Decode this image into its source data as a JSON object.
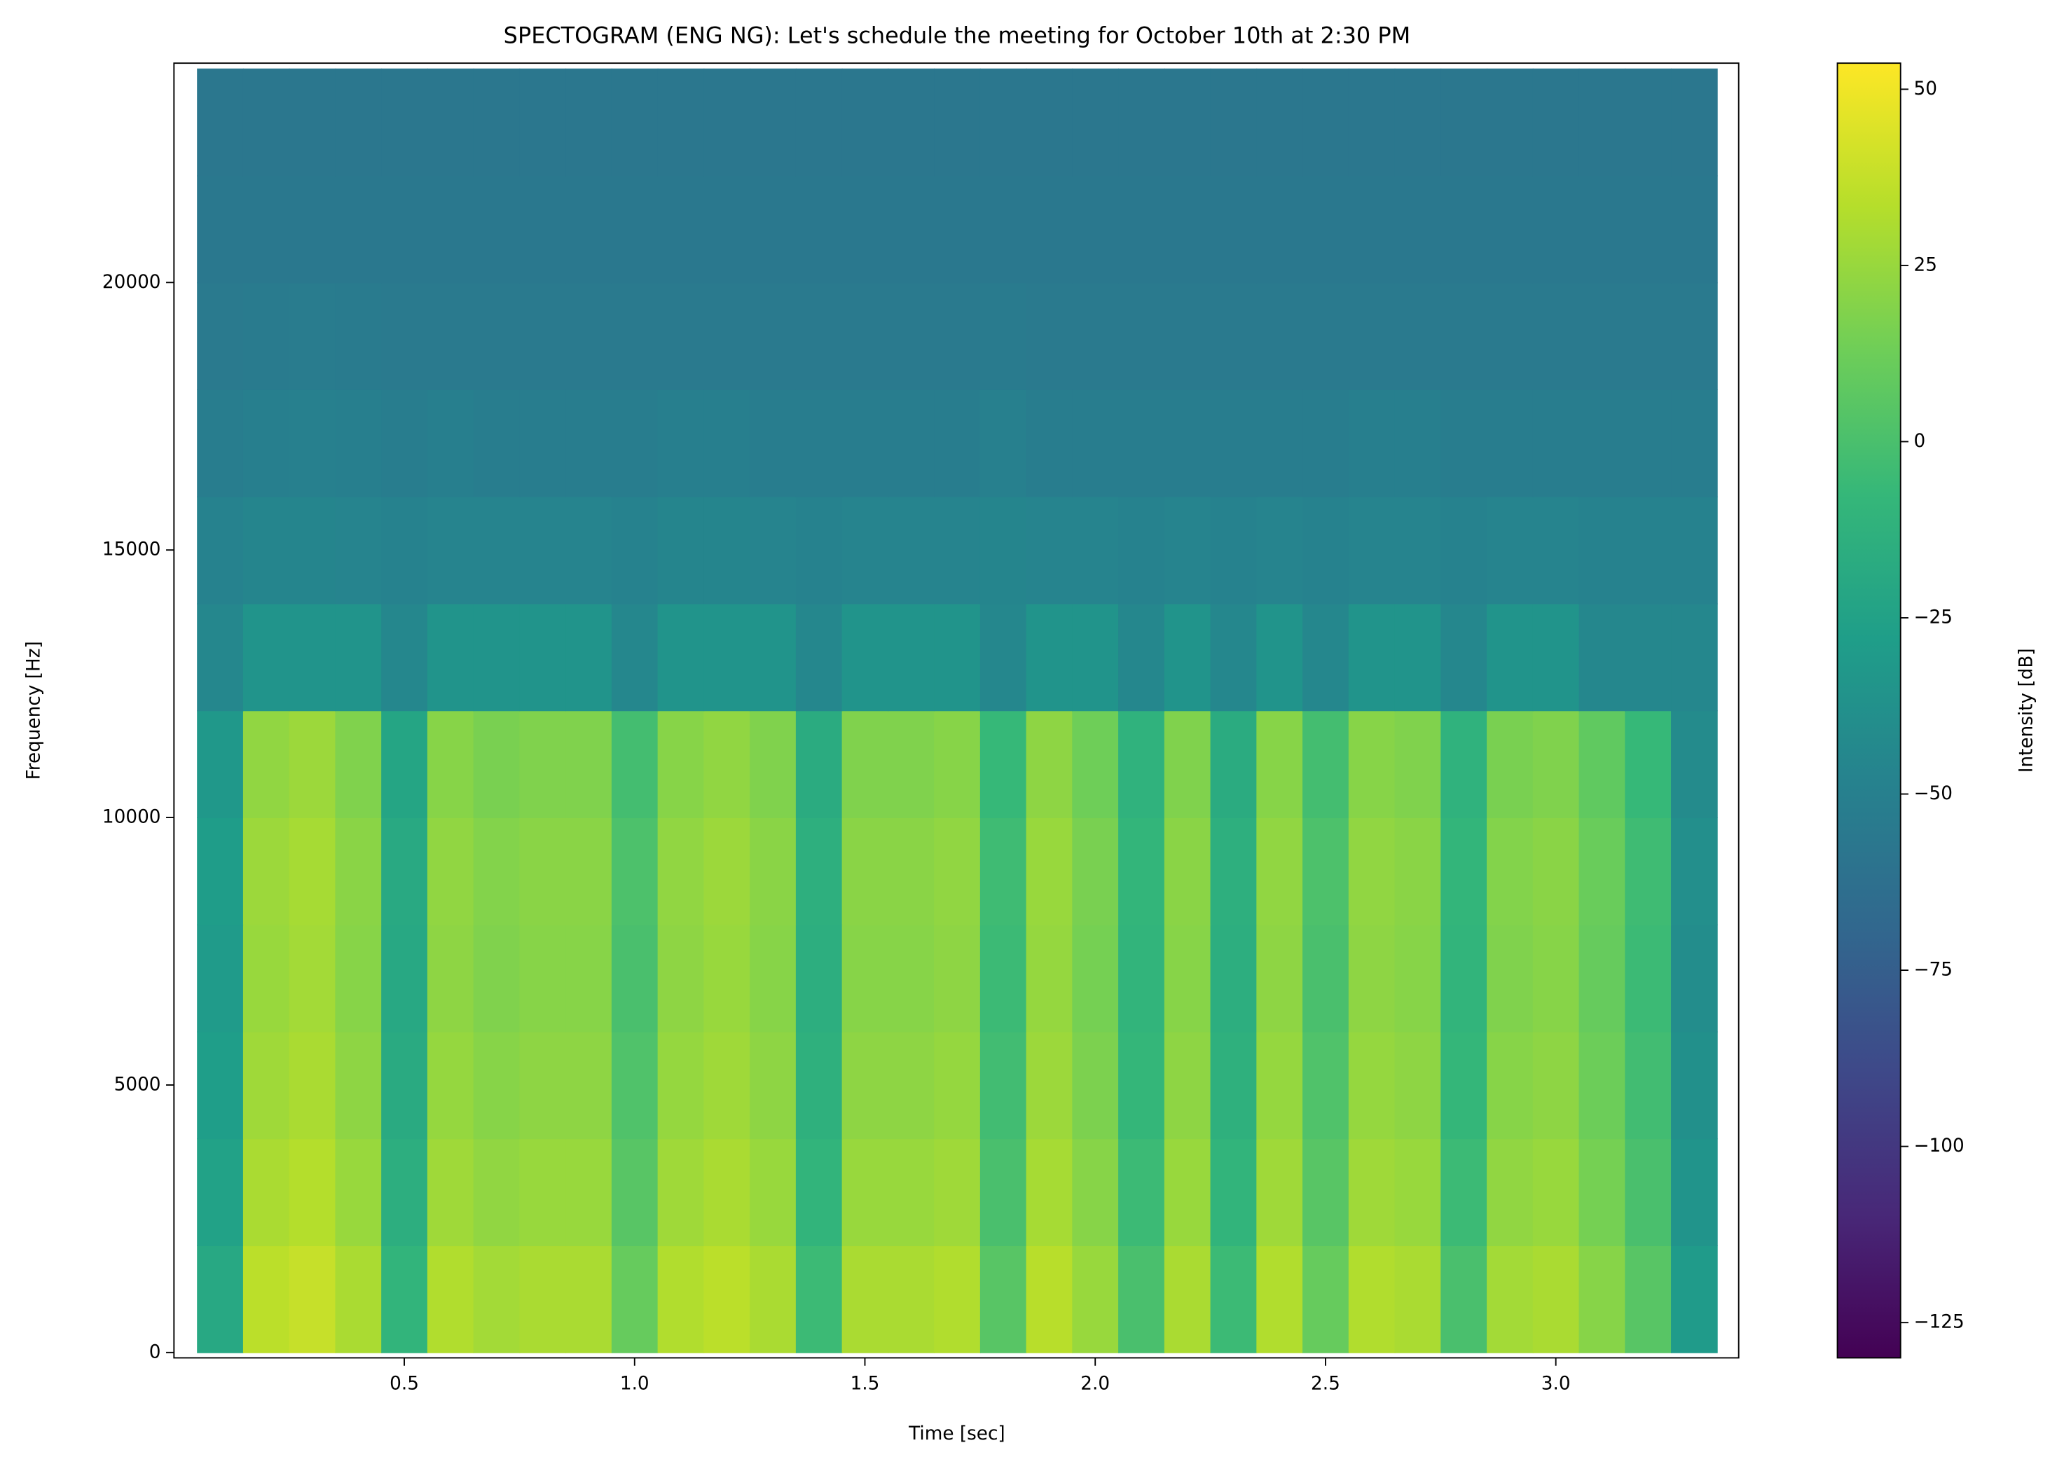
{
  "chart_data": {
    "type": "heatmap",
    "title": "SPECTOGRAM (ENG NG): Let's schedule the meeting for October 10th at 2:30 PM",
    "x_label": "Time [sec]",
    "y_label": "Frequency [Hz]",
    "colorbar_label": "Intensity [dB]",
    "colormap": "viridis",
    "x": [
      0.1,
      0.2,
      0.3,
      0.4,
      0.5,
      0.6,
      0.7,
      0.8,
      0.9,
      1.0,
      1.1,
      1.2,
      1.3,
      1.4,
      1.5,
      1.6,
      1.7,
      1.8,
      1.9,
      2.0,
      2.1,
      2.2,
      2.3,
      2.4,
      2.5,
      2.6,
      2.7,
      2.8,
      2.9,
      3.0,
      3.1,
      3.2,
      3.3
    ],
    "y": [
      1000,
      3000,
      5000,
      7000,
      9000,
      11000,
      13000,
      15000,
      17000,
      19000,
      21000,
      23000
    ],
    "values": [
      [
        -20,
        35,
        38,
        30,
        -10,
        32,
        28,
        30,
        30,
        10,
        32,
        35,
        30,
        -5,
        30,
        30,
        32,
        5,
        34,
        25,
        0,
        30,
        -5,
        32,
        10,
        32,
        30,
        0,
        28,
        30,
        20,
        5,
        -30
      ],
      [
        -25,
        30,
        33,
        25,
        -15,
        27,
        23,
        25,
        25,
        5,
        27,
        30,
        25,
        -10,
        25,
        25,
        27,
        0,
        29,
        20,
        -5,
        25,
        -10,
        27,
        5,
        27,
        25,
        -5,
        23,
        25,
        15,
        0,
        -35
      ],
      [
        -28,
        27,
        30,
        22,
        -18,
        24,
        20,
        22,
        22,
        2,
        24,
        27,
        22,
        -13,
        22,
        22,
        24,
        -3,
        26,
        17,
        -8,
        22,
        -13,
        24,
        2,
        24,
        22,
        -8,
        20,
        22,
        12,
        -3,
        -38
      ],
      [
        -30,
        25,
        28,
        20,
        -20,
        22,
        18,
        20,
        20,
        0,
        22,
        25,
        20,
        -15,
        20,
        20,
        22,
        -5,
        24,
        15,
        -10,
        20,
        -15,
        22,
        0,
        22,
        20,
        -10,
        18,
        20,
        10,
        -5,
        -40
      ],
      [
        -29,
        26,
        29,
        21,
        -19,
        23,
        19,
        21,
        21,
        1,
        23,
        26,
        21,
        -14,
        21,
        21,
        23,
        -4,
        25,
        16,
        -9,
        21,
        -14,
        23,
        1,
        23,
        21,
        -9,
        19,
        21,
        11,
        -4,
        -39
      ],
      [
        -32,
        23,
        26,
        18,
        -22,
        20,
        16,
        18,
        18,
        -2,
        20,
        23,
        18,
        -17,
        18,
        18,
        20,
        -7,
        22,
        13,
        -12,
        18,
        -17,
        20,
        -2,
        20,
        18,
        -12,
        16,
        18,
        8,
        -7,
        -42
      ],
      [
        -45,
        -35,
        -35,
        -35,
        -45,
        -35,
        -35,
        -35,
        -35,
        -45,
        -35,
        -35,
        -35,
        -45,
        -35,
        -35,
        -35,
        -45,
        -35,
        -35,
        -45,
        -35,
        -45,
        -35,
        -45,
        -35,
        -35,
        -45,
        -35,
        -35,
        -45,
        -45,
        -45
      ],
      [
        -48,
        -46,
        -46,
        -47,
        -48,
        -47,
        -47,
        -47,
        -47,
        -48,
        -46,
        -46,
        -47,
        -48,
        -47,
        -47,
        -47,
        -46,
        -47,
        -47,
        -48,
        -47,
        -48,
        -47,
        -48,
        -47,
        -47,
        -48,
        -47,
        -47,
        -48,
        -48,
        -48
      ],
      [
        -52,
        -51,
        -50,
        -51,
        -52,
        -51,
        -52,
        -52,
        -52,
        -52,
        -51,
        -51,
        -52,
        -52,
        -52,
        -52,
        -52,
        -50,
        -52,
        -52,
        -52,
        -52,
        -52,
        -52,
        -52,
        -51,
        -51,
        -52,
        -52,
        -52,
        -52,
        -52,
        -52
      ],
      [
        -55,
        -54,
        -53,
        -54,
        -55,
        -55,
        -55,
        -55,
        -55,
        -55,
        -55,
        -55,
        -55,
        -55,
        -55,
        -55,
        -55,
        -54,
        -55,
        -55,
        -55,
        -55,
        -55,
        -55,
        -55,
        -55,
        -55,
        -55,
        -55,
        -55,
        -55,
        -55,
        -55
      ],
      [
        -56,
        -56,
        -56,
        -56,
        -56,
        -56,
        -56,
        -56,
        -56,
        -56,
        -56,
        -56,
        -56,
        -56,
        -56,
        -56,
        -56,
        -56,
        -56,
        -56,
        -56,
        -56,
        -56,
        -56,
        -56,
        -56,
        -56,
        -56,
        -56,
        -56,
        -56,
        -56,
        -56
      ],
      [
        -57,
        -57,
        -57,
        -57,
        -57,
        -57,
        -57,
        -57,
        -57,
        -57,
        -57,
        -57,
        -57,
        -57,
        -57,
        -57,
        -57,
        -57,
        -57,
        -57,
        -57,
        -57,
        -57,
        -57,
        -57,
        -57,
        -57,
        -57,
        -57,
        -57,
        -57,
        -57,
        -57
      ]
    ],
    "xlim": [
      0,
      3.397
    ],
    "xticks": [
      0.5,
      {
        "value": 1,
        "label": "1.0"
      },
      1.5,
      {
        "value": 2,
        "label": "2.0"
      },
      2.5,
      {
        "value": 3,
        "label": "3.0"
      }
    ],
    "ylim": [
      -100,
      24100
    ],
    "yticks": [
      0,
      5000,
      10000,
      15000,
      20000
    ],
    "clim": [
      -130,
      53.7
    ],
    "cticks": [
      {
        "value": -125,
        "label": "−125"
      },
      {
        "value": -100,
        "label": "−100"
      },
      {
        "value": -75,
        "label": "−75"
      },
      {
        "value": -50,
        "label": "−50"
      },
      {
        "value": -25,
        "label": "−25"
      },
      0,
      25,
      50
    ]
  }
}
